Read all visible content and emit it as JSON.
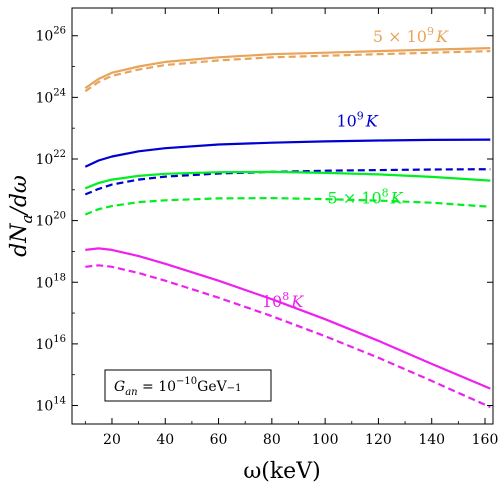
{
  "chart_data": {
    "type": "line",
    "xlabel": "ω(keV)",
    "ylabel": "dN_a/dω",
    "xlim": [
      5,
      163
    ],
    "ylim_log10": [
      13.4,
      26.9
    ],
    "y_scale": "log",
    "x_ticks": [
      20,
      40,
      60,
      80,
      100,
      120,
      140,
      160
    ],
    "y_ticks": [
      {
        "exp": 14,
        "base": "10",
        "sup": "14"
      },
      {
        "exp": 16,
        "base": "10",
        "sup": "16"
      },
      {
        "exp": 18,
        "base": "10",
        "sup": "18"
      },
      {
        "exp": 20,
        "base": "10",
        "sup": "20"
      },
      {
        "exp": 22,
        "base": "10",
        "sup": "22"
      },
      {
        "exp": 24,
        "base": "10",
        "sup": "24"
      },
      {
        "exp": 26,
        "base": "10",
        "sup": "26"
      }
    ],
    "grid": false,
    "legend_box": {
      "text_main": "G",
      "text_sub": "an",
      "text_eq": " = 10",
      "text_sup": "−10",
      "text_unit": "GeV",
      "text_unit_sup": "−1",
      "placement": "bottom-left"
    },
    "series": [
      {
        "color": "#e8a45a",
        "label_parts": {
          "pre": "5 × 10",
          "sup": "9",
          "post": "K"
        },
        "label_anchor": [
          132,
          25.8
        ],
        "solid": {
          "x": [
            10,
            15,
            20,
            30,
            40,
            60,
            80,
            100,
            120,
            140,
            162
          ],
          "y": [
            24.3,
            24.6,
            24.8,
            25.0,
            25.15,
            25.3,
            25.4,
            25.45,
            25.5,
            25.55,
            25.6
          ]
        },
        "dashed": {
          "x": [
            10,
            15,
            20,
            30,
            40,
            60,
            80,
            100,
            120,
            140,
            162
          ],
          "y": [
            24.2,
            24.5,
            24.7,
            24.9,
            25.05,
            25.2,
            25.3,
            25.35,
            25.4,
            25.45,
            25.5
          ]
        }
      },
      {
        "color": "#0000d0",
        "label_parts": {
          "pre": "10",
          "sup": "9",
          "post": "K"
        },
        "label_anchor": [
          112,
          23.05
        ],
        "solid": {
          "x": [
            10,
            15,
            20,
            30,
            40,
            60,
            80,
            100,
            120,
            140,
            162
          ],
          "y": [
            21.75,
            21.95,
            22.08,
            22.25,
            22.35,
            22.47,
            22.53,
            22.57,
            22.6,
            22.62,
            22.63
          ]
        },
        "dashed": {
          "x": [
            10,
            15,
            20,
            30,
            40,
            60,
            80,
            100,
            120,
            140,
            162
          ],
          "y": [
            20.85,
            21.03,
            21.17,
            21.33,
            21.43,
            21.53,
            21.58,
            21.62,
            21.64,
            21.66,
            21.67
          ]
        }
      },
      {
        "color": "#00ee22",
        "label_parts": {
          "pre": "5 × 10",
          "sup": "8",
          "post": "K"
        },
        "label_anchor": [
          115,
          20.55
        ],
        "solid": {
          "x": [
            10,
            15,
            20,
            30,
            40,
            60,
            80,
            100,
            120,
            140,
            162
          ],
          "y": [
            21.05,
            21.22,
            21.33,
            21.45,
            21.52,
            21.57,
            21.58,
            21.55,
            21.5,
            21.42,
            21.3
          ]
        },
        "dashed": {
          "x": [
            10,
            15,
            20,
            30,
            40,
            60,
            80,
            100,
            120,
            140,
            162
          ],
          "y": [
            20.2,
            20.37,
            20.47,
            20.6,
            20.66,
            20.72,
            20.73,
            20.7,
            20.65,
            20.58,
            20.45
          ]
        }
      },
      {
        "color": "#ee22ee",
        "label_parts": {
          "pre": "10",
          "sup": "8",
          "post": "K"
        },
        "label_anchor": [
          84,
          17.2
        ],
        "solid": {
          "x": [
            10,
            15,
            20,
            30,
            40,
            60,
            80,
            100,
            120,
            140,
            162
          ],
          "y": [
            19.05,
            19.1,
            19.05,
            18.85,
            18.6,
            18.05,
            17.45,
            16.8,
            16.1,
            15.35,
            14.55
          ]
        },
        "dashed": {
          "x": [
            10,
            15,
            20,
            30,
            40,
            60,
            80,
            100,
            120,
            140,
            162
          ],
          "y": [
            18.5,
            18.55,
            18.5,
            18.3,
            18.05,
            17.5,
            16.9,
            16.25,
            15.55,
            14.8,
            13.95
          ]
        }
      }
    ]
  }
}
